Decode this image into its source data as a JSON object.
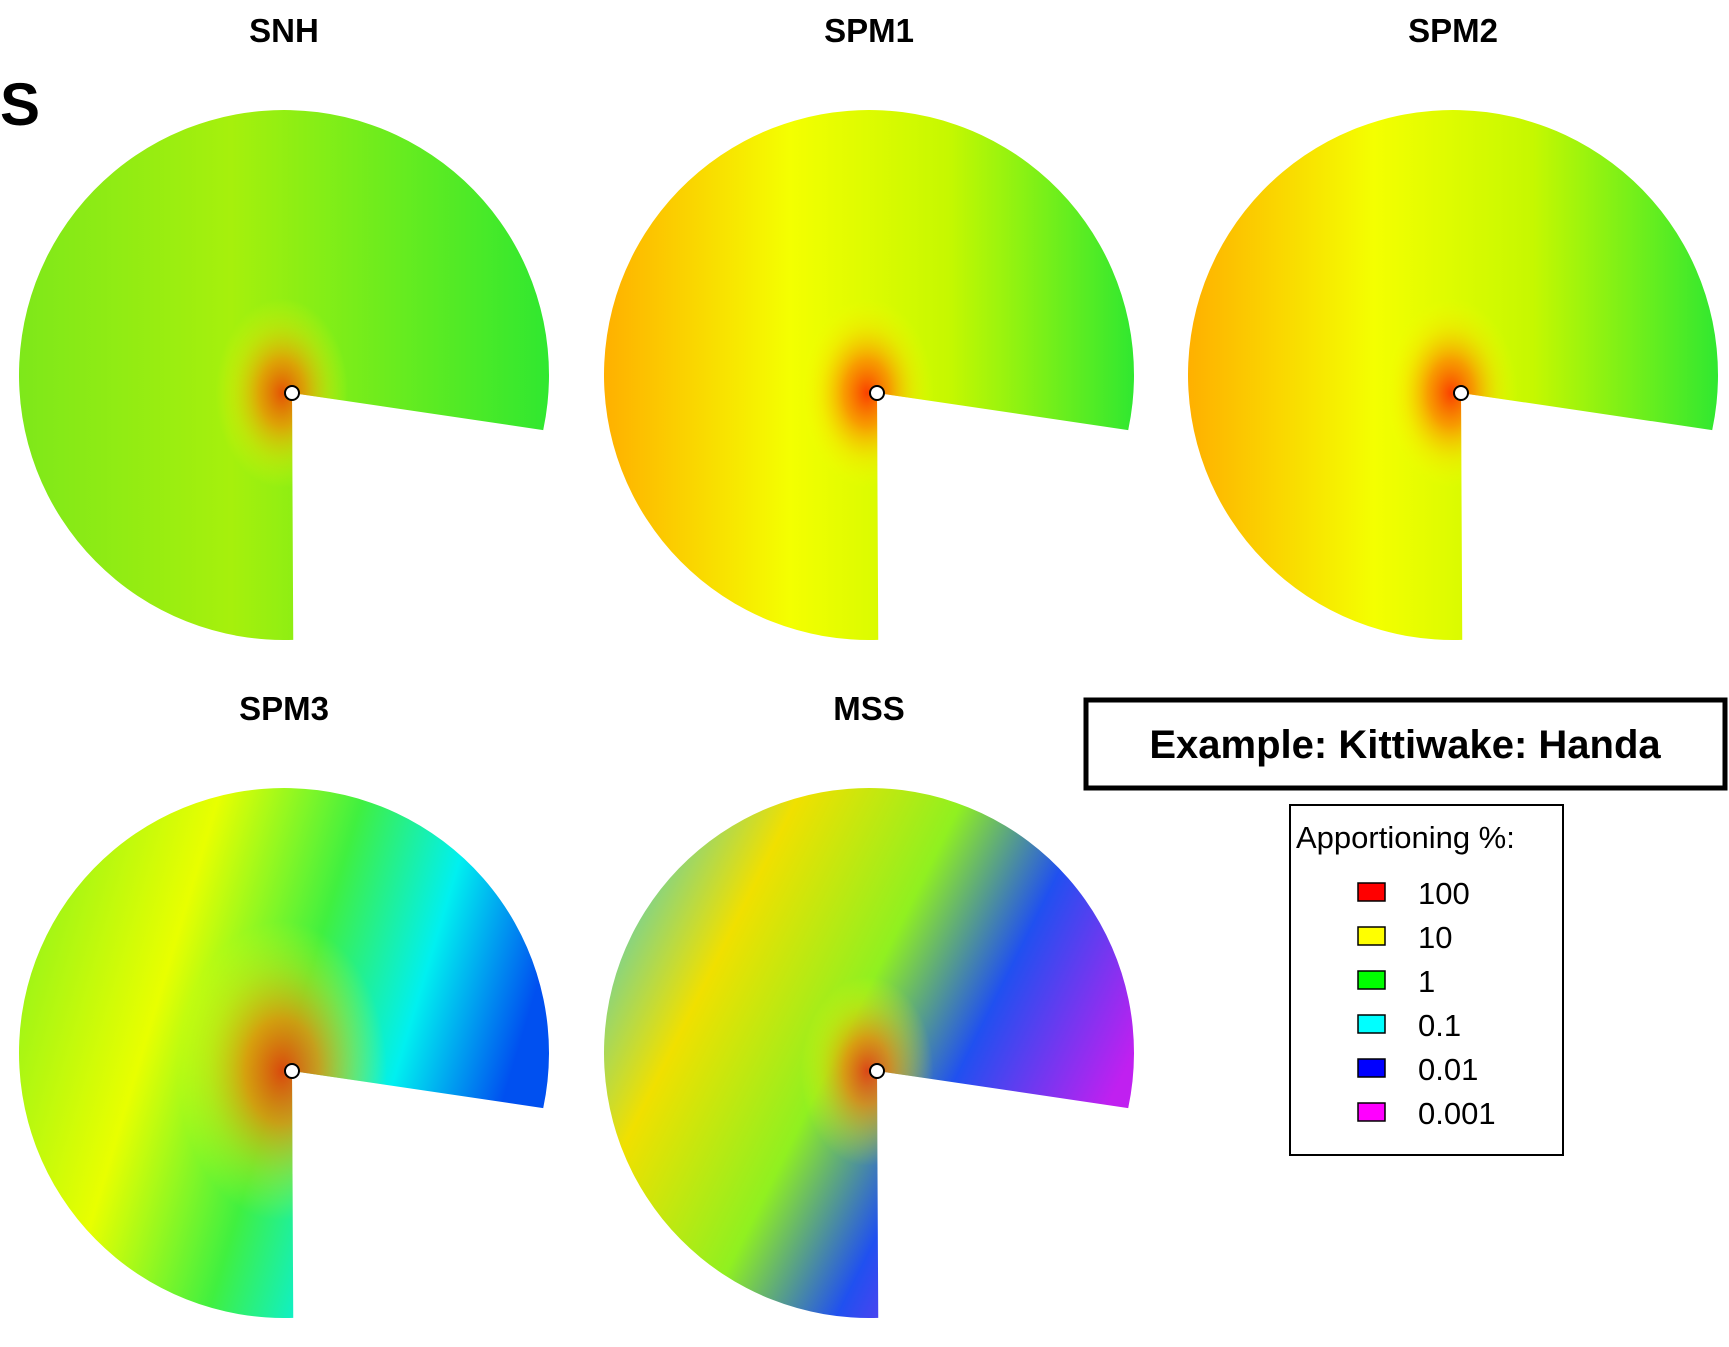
{
  "corner_letter": "S",
  "maps": [
    {
      "title": "SNH",
      "palette": "snh"
    },
    {
      "title": "SPM1",
      "palette": "spm"
    },
    {
      "title": "SPM2",
      "palette": "spm"
    },
    {
      "title": "SPM3",
      "palette": "spm3"
    },
    {
      "title": "MSS",
      "palette": "mss"
    }
  ],
  "example_label": "Example: Kittiwake: Handa",
  "legend": {
    "title": "Apportioning %:",
    "items": [
      {
        "label": "100",
        "color": "#ff0000"
      },
      {
        "label": "10",
        "color": "#ffff00"
      },
      {
        "label": "1",
        "color": "#00ff00"
      },
      {
        "label": "0.1",
        "color": "#00ffff"
      },
      {
        "label": "0.01",
        "color": "#0000ff"
      },
      {
        "label": "0.001",
        "color": "#ff00ff"
      }
    ]
  }
}
